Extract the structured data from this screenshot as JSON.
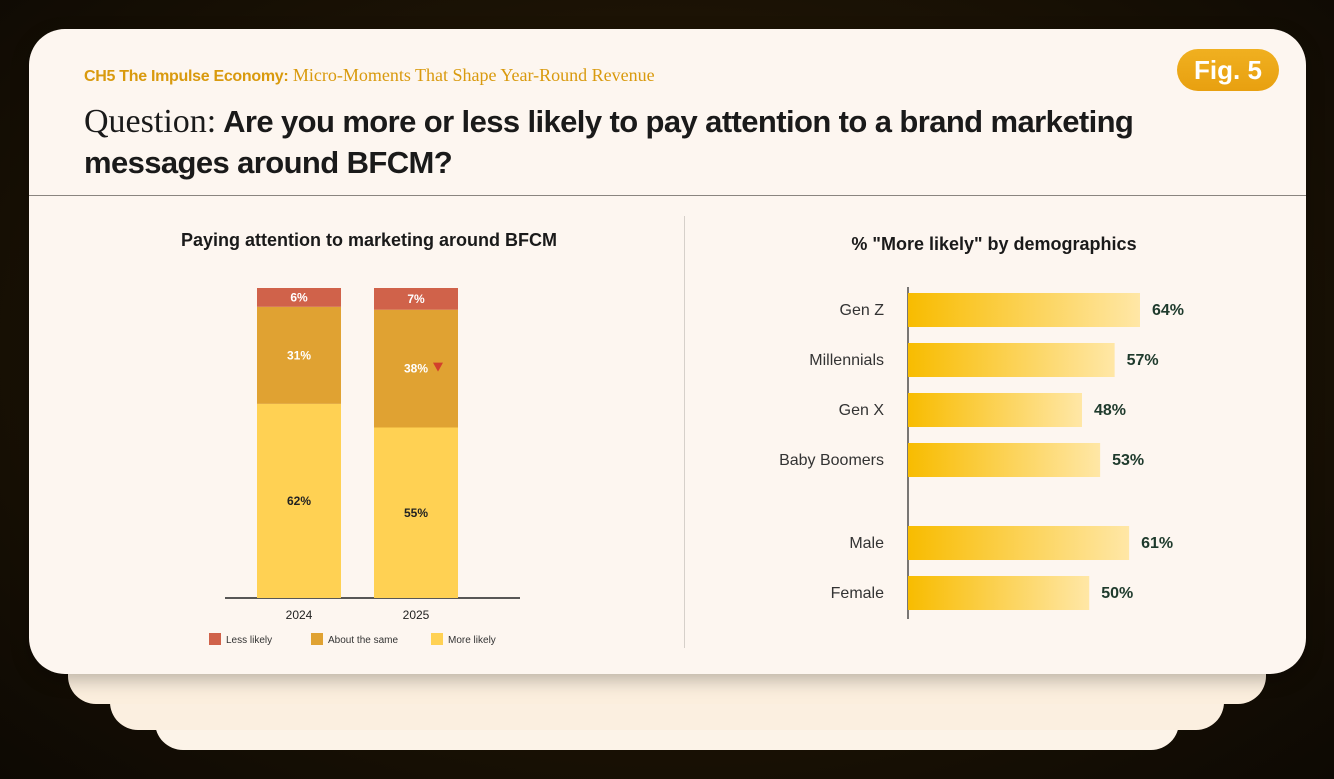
{
  "header": {
    "kicker_chapter": "CH5 The Impulse Economy:",
    "kicker_title": "Micro-Moments That Shape Year-Round Revenue",
    "fig_label": "Fig. 5",
    "question_lead": "Question:",
    "question_text": "Are you more or less likely to pay attention to a brand marketing messages around BFCM?"
  },
  "colors": {
    "less": "#d0624a",
    "same": "#e0a232",
    "more": "#ffd153",
    "hbar_start": "#f8bc00",
    "hbar_end": "#ffe7a6",
    "value_text": "#1e3a2c",
    "down_marker": "#d2402c"
  },
  "chart_data": [
    {
      "type": "bar",
      "stacked": true,
      "title": "Paying attention to marketing around BFCM",
      "categories": [
        "2024",
        "2025"
      ],
      "series": [
        {
          "name": "More likely",
          "key": "more",
          "values": [
            62,
            55
          ],
          "labels": [
            "62%",
            "55%"
          ]
        },
        {
          "name": "About the same",
          "key": "same",
          "values": [
            31,
            38
          ],
          "labels": [
            "31%",
            "38%"
          ]
        },
        {
          "name": "Less likely",
          "key": "less",
          "values": [
            6,
            7
          ],
          "labels": [
            "6%",
            "7%"
          ]
        }
      ],
      "legend": [
        "Less likely",
        "About the same",
        "More likely"
      ],
      "legend_keys": [
        "less",
        "same",
        "more"
      ],
      "annotations": [
        {
          "category": "2025",
          "series": "About the same",
          "marker": "down-triangle"
        }
      ],
      "ylim": [
        0,
        100
      ],
      "legend_position": "bottom"
    },
    {
      "type": "bar",
      "orientation": "horizontal",
      "title": "% \"More likely\" by demographics",
      "groups": [
        {
          "name": "generation",
          "categories": [
            "Gen Z",
            "Millennials",
            "Gen X",
            "Baby Boomers"
          ],
          "values": [
            64,
            57,
            48,
            53
          ],
          "labels": [
            "64%",
            "57%",
            "48%",
            "53%"
          ]
        },
        {
          "name": "gender",
          "categories": [
            "Male",
            "Female"
          ],
          "values": [
            61,
            50
          ],
          "labels": [
            "61%",
            "50%"
          ]
        }
      ],
      "xlim": [
        0,
        64
      ]
    }
  ]
}
